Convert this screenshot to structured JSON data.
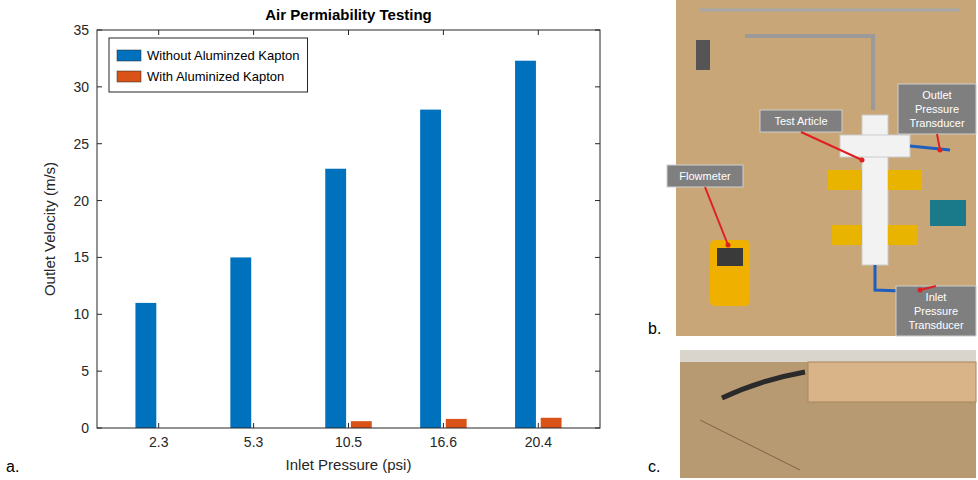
{
  "chart_data": {
    "type": "bar",
    "title": "Air Permiability Testing",
    "x_label": "Inlet Pressure (psi)",
    "y_label": "Outlet Velocity (m/s)",
    "categories": [
      "2.3",
      "5.3",
      "10.5",
      "16.6",
      "20.4"
    ],
    "series": [
      {
        "name": "Without Aluminzed Kapton",
        "color": "#0072bd",
        "values": [
          11,
          15,
          22.8,
          28,
          32.3
        ]
      },
      {
        "name": "With Aluminized Kapton",
        "color": "#d95319",
        "values": [
          0,
          0,
          0.6,
          0.8,
          0.9
        ]
      }
    ],
    "ylim": [
      0,
      35
    ],
    "yticks": [
      0,
      5,
      10,
      15,
      20,
      25,
      30,
      35
    ],
    "grid": false,
    "legend": "upper-left"
  },
  "panels": [
    {
      "letter": "a."
    },
    {
      "letter": "b.",
      "callouts": [
        "Outlet Pressure Transducer",
        "Test Article",
        "Flowmeter",
        "Inlet Pressure Transducer"
      ]
    },
    {
      "letter": "c."
    }
  ]
}
